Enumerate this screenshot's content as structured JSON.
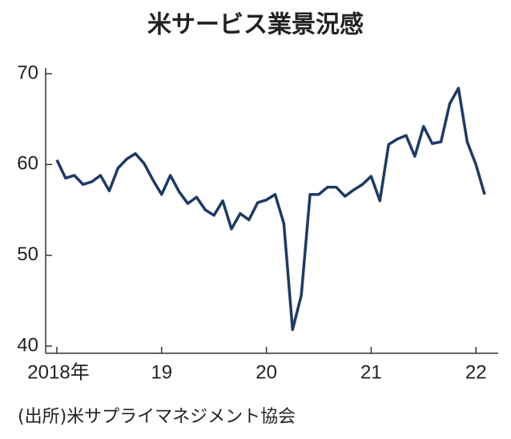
{
  "chart_data": {
    "type": "line",
    "title": "米サービス業景況感",
    "source": "(出所)米サプライマネジメント協会",
    "categories": [
      "2018年",
      null,
      null,
      null,
      null,
      null,
      null,
      null,
      null,
      null,
      null,
      null,
      "19",
      null,
      null,
      null,
      null,
      null,
      null,
      null,
      null,
      null,
      null,
      null,
      "20",
      null,
      null,
      null,
      null,
      null,
      null,
      null,
      null,
      null,
      null,
      null,
      "21",
      null,
      null,
      null,
      null,
      null,
      null,
      null,
      null,
      null,
      null,
      null,
      "22",
      null
    ],
    "series": [
      {
        "name": "米サービス業景況感",
        "color": "#1c3a66",
        "values": [
          60.5,
          58.5,
          58.8,
          57.8,
          58.1,
          58.8,
          57.1,
          59.6,
          60.6,
          61.2,
          60.1,
          58.3,
          56.7,
          58.8,
          57.0,
          55.7,
          56.4,
          55.0,
          54.4,
          56.0,
          52.9,
          54.6,
          53.9,
          55.8,
          56.1,
          56.7,
          53.5,
          41.8,
          45.6,
          56.7,
          56.7,
          57.5,
          57.5,
          56.5,
          57.2,
          57.8,
          58.7,
          56.0,
          62.2,
          62.8,
          63.2,
          60.9,
          64.2,
          62.3,
          62.5,
          66.7,
          68.4,
          62.5,
          60.0,
          56.7
        ]
      }
    ],
    "ylim": [
      40,
      70
    ],
    "yticks": [
      40,
      50,
      60,
      70
    ]
  }
}
